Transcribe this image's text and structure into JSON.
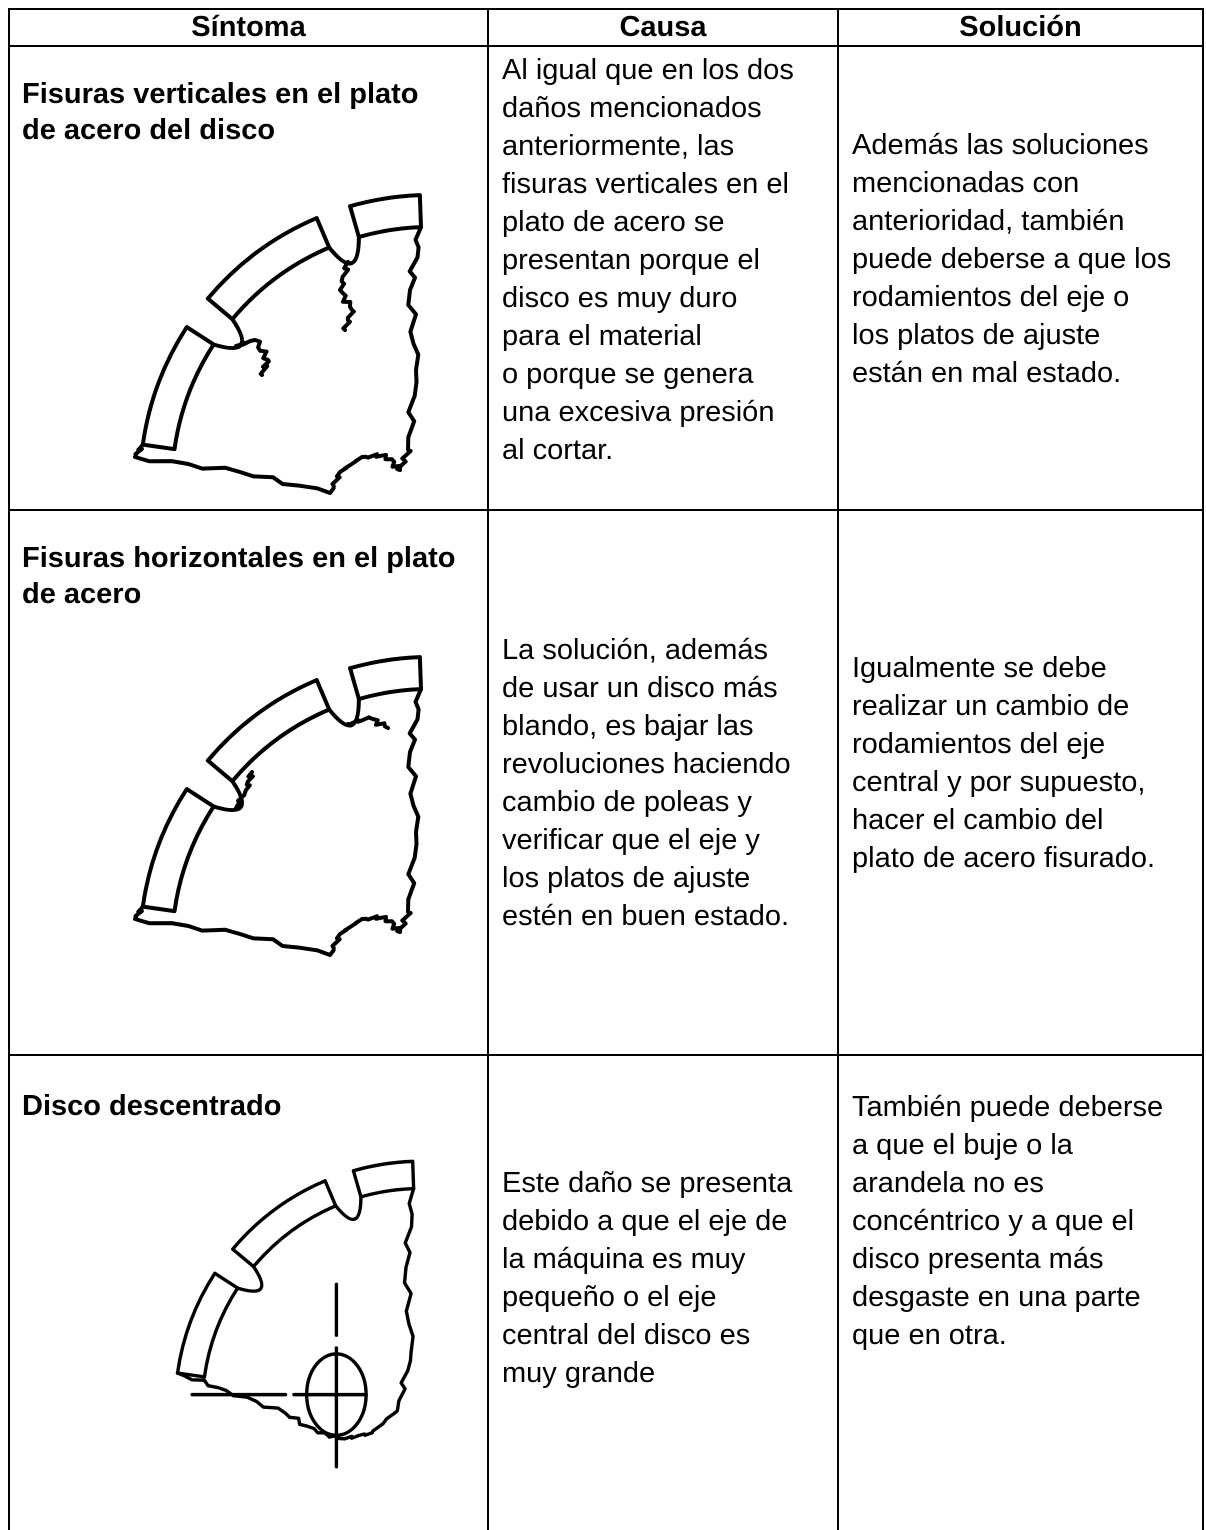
{
  "table": {
    "headers": [
      "Síntoma",
      "Causa",
      "Solución"
    ],
    "rows": [
      {
        "symptom": [
          "Fisuras verticales en el plato",
          "de acero del disco"
        ],
        "cause": [
          "Al igual que en los dos",
          "daños mencionados",
          "anteriormente, las",
          "fisuras verticales en el",
          "plato de acero se",
          "presentan porque el",
          "disco es muy duro",
          "para el material",
          "o  porque se genera",
          "una excesiva presión",
          "al cortar."
        ],
        "solution": [
          "Además las soluciones",
          "mencionadas con",
          "anterioridad, también",
          "puede deberse a que los",
          "rodamientos del eje o",
          "los platos de ajuste",
          "están en mal estado."
        ]
      },
      {
        "symptom": [
          "Fisuras horizontales en el plato",
          "de acero"
        ],
        "cause": [
          "La solución, además",
          "de usar un disco más",
          "blando, es bajar las",
          "revoluciones haciendo",
          "cambio de poleas y",
          "verificar que el eje y",
          "los platos de ajuste",
          "estén en buen estado."
        ],
        "solution": [
          "Igualmente se debe",
          "realizar un cambio de",
          "rodamientos del eje",
          "central y por supuesto,",
          "hacer el cambio del",
          "plato de acero fisurado."
        ]
      },
      {
        "symptom": [
          "Disco descentrado"
        ],
        "cause": [
          "Este daño se presenta",
          "debido a que el eje de",
          "la máquina es muy",
          "pequeño o el eje",
          "central del disco es",
          "muy grande"
        ],
        "solution": [
          "También puede deberse",
          "a que el buje o la",
          "arandela no es",
          "concéntrico y a que el",
          "disco presenta más",
          "desgaste en una parte",
          "que en otra."
        ]
      }
    ]
  }
}
